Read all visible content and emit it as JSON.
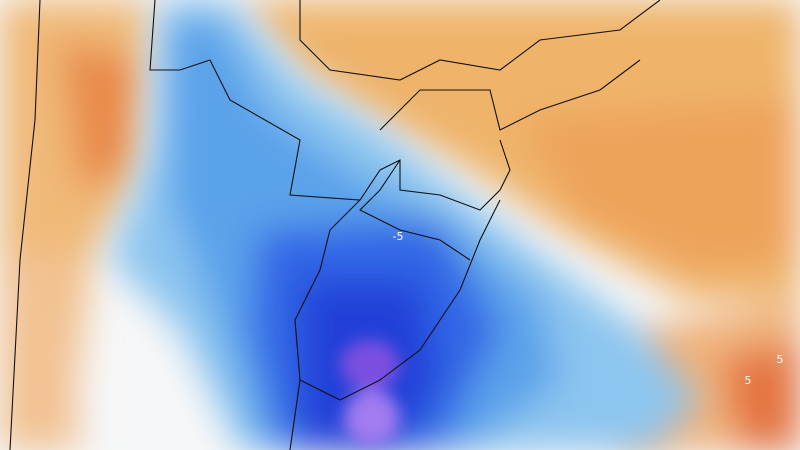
{
  "map": {
    "contour_labels": [
      "-5",
      "5",
      "5"
    ]
  }
}
